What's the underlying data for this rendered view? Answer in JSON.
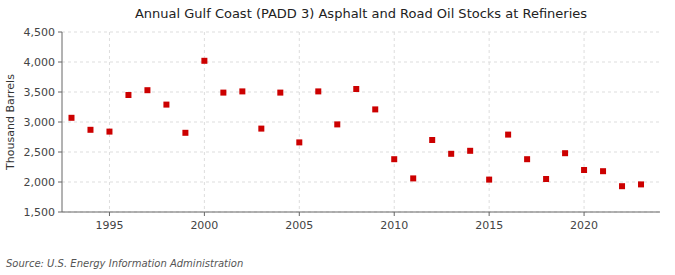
{
  "chart_data": {
    "type": "scatter",
    "title": "Annual Gulf Coast (PADD 3) Asphalt and Road Oil Stocks at Refineries",
    "ylabel": "Thousand Barrels",
    "annotations": [
      "Source: U.S. Energy Information Administration"
    ],
    "x": [
      1993,
      1994,
      1995,
      1996,
      1997,
      1998,
      1999,
      2000,
      2001,
      2002,
      2003,
      2004,
      2005,
      2006,
      2007,
      2008,
      2009,
      2010,
      2011,
      2012,
      2013,
      2014,
      2015,
      2016,
      2017,
      2018,
      2019,
      2020,
      2021,
      2022,
      2023
    ],
    "values": [
      3070,
      2870,
      2840,
      3450,
      3530,
      3290,
      2820,
      4020,
      3490,
      3510,
      2890,
      3490,
      2660,
      3510,
      2960,
      3550,
      3210,
      2380,
      2060,
      2700,
      2470,
      2520,
      2040,
      2790,
      2380,
      2050,
      2480,
      2200,
      2180,
      1930,
      1960
    ],
    "color": "#cc0000",
    "marker": "square",
    "xlim": [
      1992.5,
      2024
    ],
    "ylim": [
      1500,
      4500
    ],
    "xticks": [
      1995,
      2000,
      2005,
      2010,
      2015,
      2020
    ],
    "yticks": [
      {
        "value": 1500,
        "label": "1,500"
      },
      {
        "value": 2000,
        "label": "2,000"
      },
      {
        "value": 2500,
        "label": "2,500"
      },
      {
        "value": 3000,
        "label": "3,000"
      },
      {
        "value": 3500,
        "label": "3,500"
      },
      {
        "value": 4000,
        "label": "4,000"
      },
      {
        "value": 4500,
        "label": "4,500"
      }
    ],
    "grid": true
  }
}
